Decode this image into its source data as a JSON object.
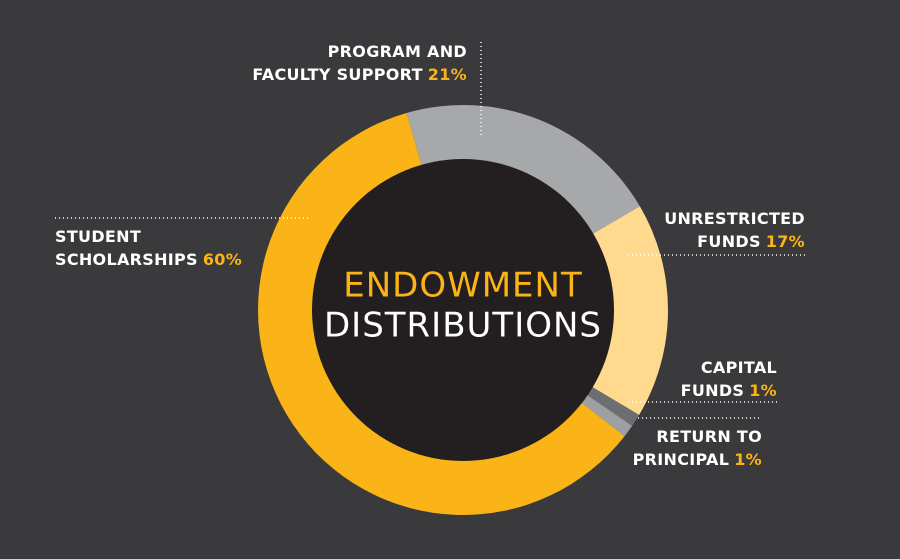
{
  "chart_data": {
    "type": "donut",
    "title": "ENDOWMENT",
    "subtitle": "DISTRIBUTIONS",
    "labels": [
      [
        "PROGRAM AND",
        "FACULTY SUPPORT"
      ],
      [
        "UNRESTRICTED",
        "FUNDS"
      ],
      [
        "CAPITAL",
        "FUNDS"
      ],
      [
        "RETURN TO",
        "PRINCIPAL"
      ],
      [
        "STUDENT",
        "SCHOLARSHIPS"
      ]
    ],
    "values": [
      21,
      17,
      1,
      1,
      60
    ],
    "value_labels": [
      "21%",
      "17%",
      "1%",
      "1%",
      "60%"
    ],
    "colors": [
      "#a7a8aa",
      "#fed98e",
      "#6d6e71",
      "#9d9fa2",
      "#fbb417"
    ]
  }
}
